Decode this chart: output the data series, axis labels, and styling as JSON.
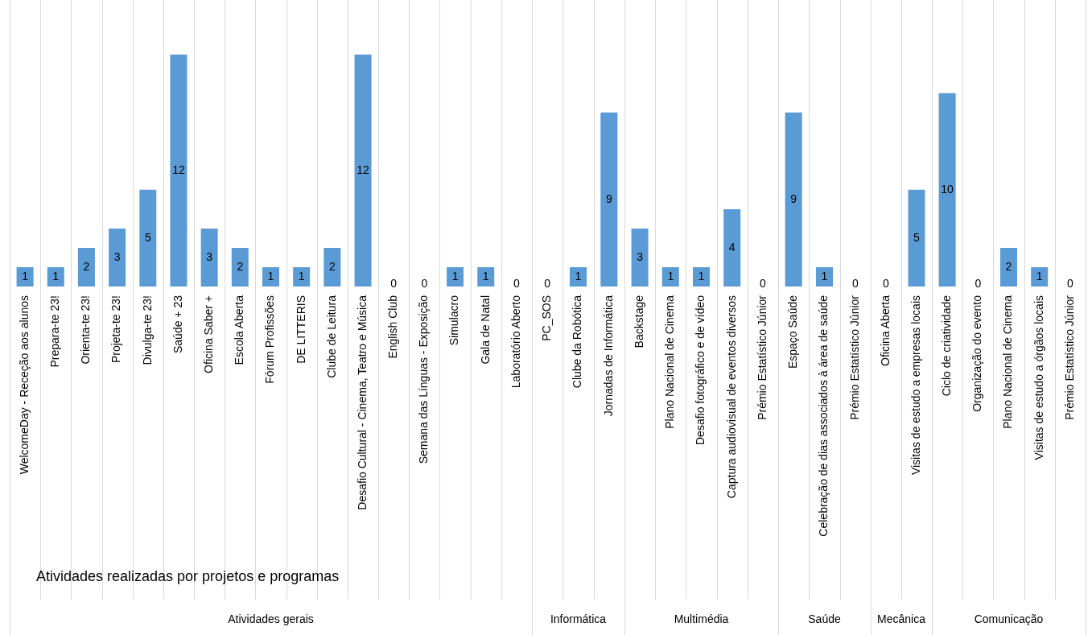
{
  "chart_data": [
    {
      "type": "bar",
      "title": "Atividades realizadas por projetos e programas",
      "xlabel": "Atividades gerais",
      "categories": [
        "WelcomeDay - Receção aos alunos",
        "Prepara-te 23!",
        "Orienta-te 23!",
        "Projeta-te 23!",
        "Divulga-te 23!",
        "Saúde + 23",
        "Oficina Saber +",
        "Escola Aberta",
        "Fórum Profissões",
        "DE LITTERIS",
        "Clube de Leitura",
        "Desafio Cultural - Cinema, Teatro e Música",
        "English Club",
        "Semana das Línguas - Exposição",
        "Simulacro",
        "Gala de Natal",
        "Laboratório Aberto"
      ],
      "values": [
        1,
        1,
        2,
        3,
        5,
        12,
        3,
        2,
        1,
        1,
        2,
        12,
        0,
        0,
        1,
        1,
        0
      ],
      "color": "#5b9bd5",
      "data_labels": true,
      "grid": "x"
    },
    {
      "type": "bar",
      "xlabel": "Informática",
      "categories": [
        "PC_SOS",
        "Clube da Robótica",
        "Jornadas de Informática"
      ],
      "values": [
        0,
        1,
        9
      ],
      "color": "#5b9bd5",
      "data_labels": true,
      "grid": "x"
    },
    {
      "type": "bar",
      "xlabel": "Multimédia",
      "categories": [
        "Backstage",
        "Plano Nacional de Cinema",
        "Desafio fotográfico e de vídeo",
        "Captura audiovisual de eventos diversos",
        "Prémio Estatístico Júnior"
      ],
      "values": [
        3,
        1,
        1,
        4,
        0
      ],
      "color": "#5b9bd5",
      "data_labels": true,
      "grid": "x"
    },
    {
      "type": "bar",
      "xlabel": "Saúde",
      "categories": [
        "Espaço Saúde",
        "Celebração de dias associados à área de saúde",
        "Prémio Estatístico Júnior"
      ],
      "values": [
        9,
        1,
        0
      ],
      "color": "#5b9bd5",
      "data_labels": true,
      "grid": "x"
    },
    {
      "type": "bar",
      "xlabel": "Mecânica",
      "categories": [
        "Oficina Aberta",
        "Visitas de estudo a empresas locais"
      ],
      "values": [
        0,
        5
      ],
      "color": "#5b9bd5",
      "data_labels": true,
      "grid": "x"
    },
    {
      "type": "bar",
      "xlabel": "Comunicação",
      "categories": [
        "Ciclo de criatividade",
        "Organização do evento",
        "Plano Nacional de Cinema",
        "Visitas de estudo a órgãos locais",
        "Prémio Estatístico Júnior"
      ],
      "values": [
        10,
        0,
        2,
        1,
        0
      ],
      "color": "#5b9bd5",
      "data_labels": true,
      "grid": "x"
    }
  ]
}
